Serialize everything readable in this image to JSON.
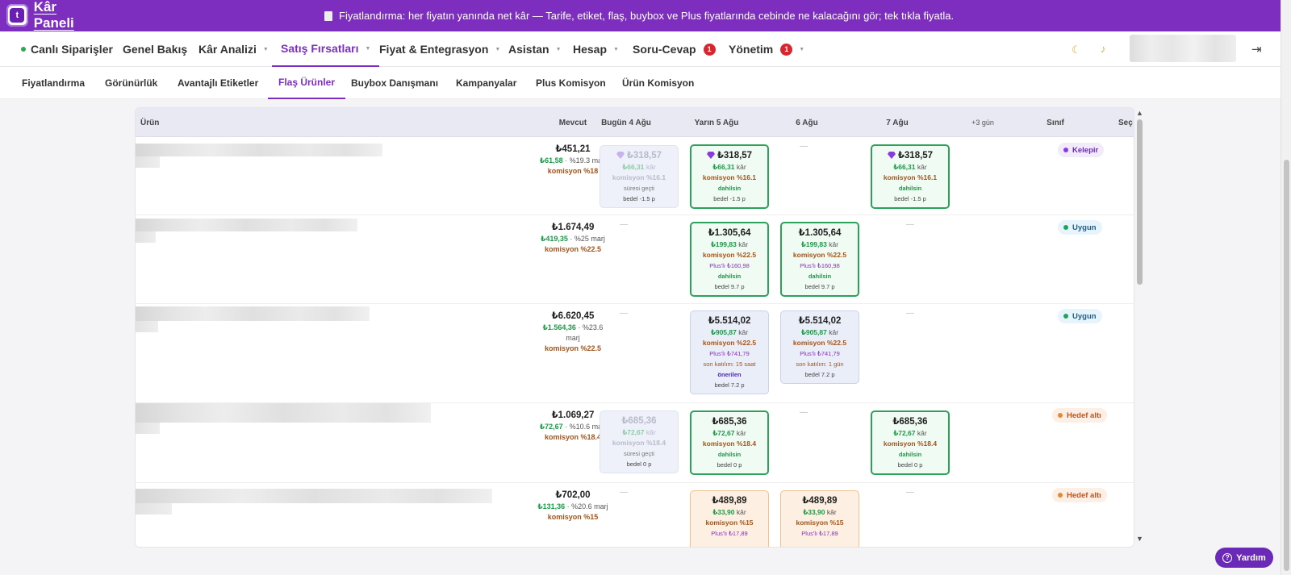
{
  "app": {
    "logo_text": "Kâr Paneli",
    "logo_letter": "t"
  },
  "banner": {
    "icon": "document-icon",
    "message": "Fiyatlandırma: her fiyatın yanında net kâr — Tarife, etiket, flaş, buybox ve Plus fiyatlarında cebinde ne kalacağını gör; tek tıkla fiyatla."
  },
  "topnav": {
    "items": [
      {
        "label": "Canlı Siparişler"
      },
      {
        "label": "Genel Bakış"
      },
      {
        "label": "Kâr Analizi"
      },
      {
        "label": "Satış Fırsatları"
      },
      {
        "label": "Fiyat & Entegrasyon"
      },
      {
        "label": "Asistan"
      },
      {
        "label": "Hesap"
      },
      {
        "label": "Soru-Cevap",
        "badge": "1"
      },
      {
        "label": "Yönetim",
        "badge": "1"
      }
    ],
    "active": "Satış Fırsatları",
    "icons": [
      "moon-icon",
      "bell-icon",
      "logout-icon"
    ]
  },
  "subnav": {
    "items": [
      "Fiyatlandırma",
      "Görünürlük",
      "Avantajlı Etiketler",
      "Flaş Ürünler",
      "Buybox Danışmanı",
      "Kampanyalar",
      "Plus Komisyon",
      "Ürün Komisyon"
    ],
    "active": "Flaş Ürünler"
  },
  "table": {
    "headers": {
      "urun": "Ürün",
      "mevcut": "Mevcut",
      "d1": "Bugün 4 Ağu",
      "d2": "Yarın 5 Ağu",
      "d3": "6 Ağu",
      "d4": "7 Ağu",
      "more": "+3 gün",
      "sinif": "Sınıf",
      "sec": "Seç"
    },
    "dash": "—",
    "rows": [
      {
        "price": "₺451,21",
        "kar": "₺61,58",
        "marj": "· %19.3 marj",
        "kom": "komisyon %18",
        "cells": [
          {
            "price": "₺318,57",
            "kar": "₺66,31",
            "kar_label": "kâr",
            "kom": "komisyon %16.1",
            "status": "süresi geçti",
            "bedel": "bedel -1.5 p"
          },
          {
            "price": "₺318,57",
            "kar": "₺66,31",
            "kar_label": "kâr",
            "kom": "komisyon %16.1",
            "status": "dahilsin",
            "bedel": "bedel -1.5 p"
          },
          {
            "price": "₺318,57",
            "kar": "₺66,31",
            "kar_label": "kâr",
            "kom": "komisyon %16.1",
            "status": "dahilsin",
            "bedel": "bedel -1.5 p"
          }
        ],
        "class": "Kelepir"
      },
      {
        "price": "₺1.674,49",
        "kar": "₺419,35",
        "marj": "· %25 marj",
        "kom": "komisyon %22.5",
        "cells": [
          {
            "price": "₺1.305,64",
            "kar": "₺199,83",
            "kar_label": "kâr",
            "kom": "komisyon %22.5",
            "plus": "Plus'lı ₺160,98",
            "status": "dahilsin",
            "bedel": "bedel 9.7 p"
          },
          {
            "price": "₺1.305,64",
            "kar": "₺199,83",
            "kar_label": "kâr",
            "kom": "komisyon %22.5",
            "plus": "Plus'lı ₺160,98",
            "status": "dahilsin",
            "bedel": "bedel 9.7 p"
          }
        ],
        "class": "Uygun"
      },
      {
        "price": "₺6.620,45",
        "kar": "₺1.564,36",
        "marj": "· %23.6",
        "marj2": "marj",
        "kom": "komisyon %22.5",
        "cells": [
          {
            "price": "₺5.514,02",
            "kar": "₺905,87",
            "kar_label": "kâr",
            "kom": "komisyon %22.5",
            "plus": "Plus'lı ₺741,79",
            "son": "son katılım: 15 saat",
            "oner": "önerilen",
            "bedel": "bedel 7.2 p"
          },
          {
            "price": "₺5.514,02",
            "kar": "₺905,87",
            "kar_label": "kâr",
            "kom": "komisyon %22.5",
            "plus": "Plus'lı ₺741,79",
            "son": "son katılım: 1 gün",
            "bedel": "bedel 7.2 p"
          }
        ],
        "class": "Uygun"
      },
      {
        "price": "₺1.069,27",
        "kar": "₺72,67",
        "marj": "· %10.6 marj",
        "kom": "komisyon %18.4",
        "cells": [
          {
            "price": "₺685,36",
            "kar": "₺72,67",
            "kar_label": "kâr",
            "kom": "komisyon %18.4",
            "status": "süresi geçti",
            "bedel": "bedel 0 p"
          },
          {
            "price": "₺685,36",
            "kar": "₺72,67",
            "kar_label": "kâr",
            "kom": "komisyon %18.4",
            "status": "dahilsin",
            "bedel": "bedel 0 p"
          },
          {
            "price": "₺685,36",
            "kar": "₺72,67",
            "kar_label": "kâr",
            "kom": "komisyon %18.4",
            "status": "dahilsin",
            "bedel": "bedel 0 p"
          }
        ],
        "class": "Hedef altı"
      },
      {
        "price": "₺702,00",
        "kar": "₺131,36",
        "marj": "· %20.6 marj",
        "kom": "komisyon %15",
        "cells": [
          {
            "price": "₺489,89",
            "kar": "₺33,90",
            "kar_label": "kâr",
            "kom": "komisyon %15",
            "plus": "Plus'lı ₺17,89"
          },
          {
            "price": "₺489,89",
            "kar": "₺33,90",
            "kar_label": "kâr",
            "kom": "komisyon %15",
            "plus": "Plus'lı ₺17,89"
          }
        ],
        "class": "Hedef altı"
      }
    ]
  },
  "help": {
    "label": "Yardım"
  },
  "colors": {
    "brand": "#7d2ebf",
    "green": "#1a9a47",
    "brown": "#a3541a"
  }
}
